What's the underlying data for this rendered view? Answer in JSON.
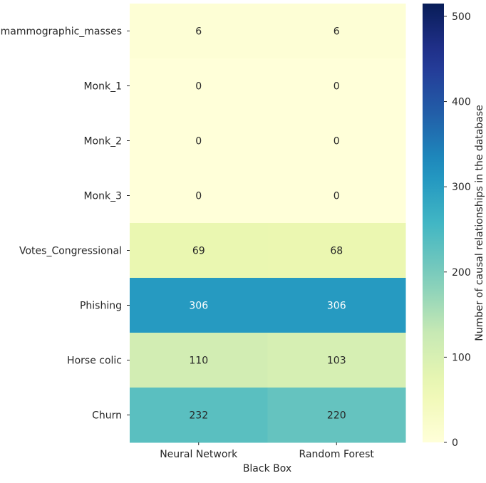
{
  "chart_data": {
    "type": "heatmap",
    "title": "",
    "xlabel": "Black Box",
    "ylabel": "",
    "colorbar_label": "Number of causal relationships in the database",
    "colormap": "YlGnBu",
    "vmin": 0,
    "vmax": 515,
    "colorbar_ticks": [
      0,
      100,
      200,
      300,
      400,
      500
    ],
    "columns": [
      "Neural Network",
      "Random Forest"
    ],
    "rows": [
      "mammographic_masses",
      "Monk_1",
      "Monk_2",
      "Monk_3",
      "Votes_Congressional",
      "Phishing",
      "Horse colic",
      "Churn"
    ],
    "values": [
      [
        6,
        6
      ],
      [
        0,
        0
      ],
      [
        0,
        0
      ],
      [
        0,
        0
      ],
      [
        69,
        68
      ],
      [
        306,
        306
      ],
      [
        110,
        103
      ],
      [
        232,
        220
      ]
    ],
    "annotations": true,
    "grid": false
  }
}
